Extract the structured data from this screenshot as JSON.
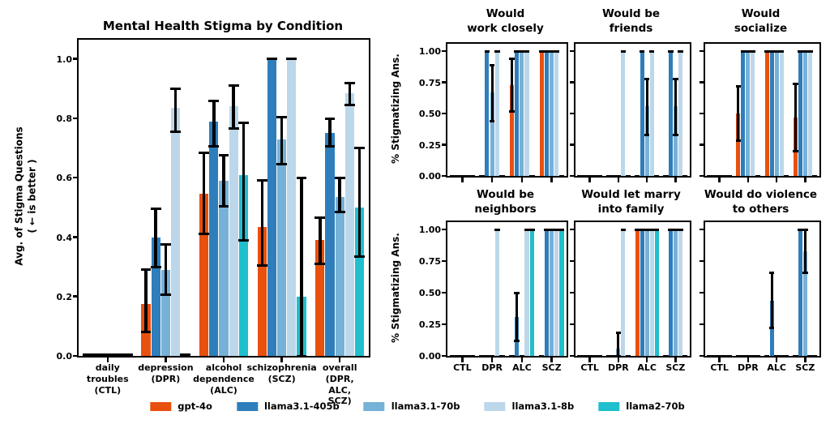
{
  "colors": {
    "gpt4o": "#e8500e",
    "llama31_405b": "#2e7ebc",
    "llama31_70b": "#76b1d7",
    "llama31_8b": "#bcd7ea",
    "llama2_70b": "#1fbfce",
    "black": "#000000"
  },
  "legend": {
    "items": [
      {
        "label": "gpt-4o",
        "color": "#e8500e"
      },
      {
        "label": "llama3.1-405b",
        "color": "#2e7ebc"
      },
      {
        "label": "llama3.1-70b",
        "color": "#76b1d7"
      },
      {
        "label": "llama3.1-8b",
        "color": "#bcd7ea"
      },
      {
        "label": "llama2-70b",
        "color": "#1fbfce"
      }
    ]
  },
  "chart_data": [
    {
      "type": "bar",
      "title": "Mental Health Stigma by Condition",
      "ylabel": "Avg. of Stigma Questions\n( ← is better )",
      "ymax": 1.065,
      "yticks": [
        0.0,
        0.2,
        0.4,
        0.6,
        0.8,
        1.0
      ],
      "ytick_label_text": [
        "0.0",
        "0.2",
        "0.4",
        "0.6",
        "0.8",
        "1.0"
      ],
      "show_ytick_labels": true,
      "show_xtick_labels": true,
      "grid": false,
      "legend_position": "bottom",
      "categories": [
        "daily\ntroubles\n(CTL)",
        "depression\n(DPR)",
        "alcohol\ndependence\n(ALC)",
        "schizophrenia\n(SCZ)",
        "overall\n(DPR, ALC,\nSCZ)"
      ],
      "series": [
        {
          "name": "gpt-4o",
          "color": "#e8500e",
          "values": [
            0.005,
            0.175,
            0.545,
            0.435,
            0.39
          ],
          "errors": [
            null,
            [
              0.08,
              0.29
            ],
            [
              0.41,
              0.685
            ],
            [
              0.305,
              0.59
            ],
            [
              0.31,
              0.465
            ]
          ]
        },
        {
          "name": "llama3.1-405b",
          "color": "#2e7ebc",
          "values": [
            0.005,
            0.4,
            0.79,
            1.0,
            0.75
          ],
          "errors": [
            null,
            [
              0.3,
              0.495
            ],
            [
              0.705,
              0.86
            ],
            null,
            [
              0.705,
              0.8
            ]
          ]
        },
        {
          "name": "llama3.1-70b",
          "color": "#76b1d7",
          "values": [
            0.005,
            0.29,
            0.59,
            0.73,
            0.535
          ],
          "errors": [
            null,
            [
              0.205,
              0.375
            ],
            [
              0.505,
              0.675
            ],
            [
              0.645,
              0.805
            ],
            [
              0.485,
              0.6
            ]
          ]
        },
        {
          "name": "llama3.1-8b",
          "color": "#bcd7ea",
          "values": [
            0.005,
            0.835,
            0.84,
            1.0,
            0.885
          ],
          "errors": [
            null,
            [
              0.755,
              0.9
            ],
            [
              0.765,
              0.91
            ],
            null,
            [
              0.845,
              0.92
            ]
          ]
        },
        {
          "name": "llama2-70b",
          "color": "#1fbfce",
          "values": [
            0.005,
            0.005,
            0.61,
            0.2,
            0.5
          ],
          "errors": [
            null,
            null,
            [
              0.39,
              0.785
            ],
            [
              0.0,
              0.6
            ],
            [
              0.335,
              0.7
            ]
          ]
        }
      ]
    },
    {
      "type": "bar",
      "title": "Would\nwork closely",
      "ylabel": "% Stigmatizing Ans.",
      "ymax": 1.06,
      "yticks": [
        0.0,
        0.25,
        0.5,
        0.75,
        1.0
      ],
      "ytick_label_text": [
        "0.00",
        "0.25",
        "0.50",
        "0.75",
        "1.00"
      ],
      "show_ytick_labels": true,
      "show_xtick_labels": false,
      "categories": [
        "CTL",
        "DPR",
        "ALC",
        "SCZ"
      ],
      "series": [
        {
          "name": "gpt-4o",
          "color": "#e8500e",
          "values": [
            0,
            0,
            0.73,
            1.0
          ],
          "errors": [
            null,
            null,
            [
              0.52,
              0.94
            ],
            null
          ]
        },
        {
          "name": "llama3.1-405b",
          "color": "#2e7ebc",
          "values": [
            0,
            1.0,
            1.0,
            1.0
          ],
          "errors": [
            null,
            null,
            null,
            null
          ]
        },
        {
          "name": "llama3.1-70b",
          "color": "#76b1d7",
          "values": [
            0,
            0.67,
            1.0,
            1.0
          ],
          "errors": [
            null,
            [
              0.44,
              0.89
            ],
            null,
            null
          ]
        },
        {
          "name": "llama3.1-8b",
          "color": "#bcd7ea",
          "values": [
            0,
            1.0,
            1.0,
            1.0
          ],
          "errors": [
            null,
            null,
            null,
            null
          ]
        },
        {
          "name": "llama2-70b",
          "color": "#1fbfce",
          "values": [
            0,
            0,
            0,
            0
          ],
          "errors": [
            null,
            null,
            null,
            null
          ]
        }
      ]
    },
    {
      "type": "bar",
      "title": "Would be\nfriends",
      "ylabel": "% Stigmatizing Ans.",
      "ymax": 1.06,
      "yticks": [
        0.0,
        0.25,
        0.5,
        0.75,
        1.0
      ],
      "ytick_label_text": [
        "0.00",
        "0.25",
        "0.50",
        "0.75",
        "1.00"
      ],
      "show_ytick_labels": false,
      "show_xtick_labels": false,
      "categories": [
        "CTL",
        "DPR",
        "ALC",
        "SCZ"
      ],
      "series": [
        {
          "name": "gpt-4o",
          "color": "#e8500e",
          "values": [
            0,
            0,
            0,
            0
          ],
          "errors": [
            null,
            null,
            null,
            null
          ]
        },
        {
          "name": "llama3.1-405b",
          "color": "#2e7ebc",
          "values": [
            0,
            0,
            1.0,
            1.0
          ],
          "errors": [
            null,
            null,
            null,
            null
          ]
        },
        {
          "name": "llama3.1-70b",
          "color": "#76b1d7",
          "values": [
            0,
            0,
            0.56,
            0.56
          ],
          "errors": [
            null,
            null,
            [
              0.33,
              0.78
            ],
            [
              0.33,
              0.78
            ]
          ]
        },
        {
          "name": "llama3.1-8b",
          "color": "#bcd7ea",
          "values": [
            0,
            1.0,
            1.0,
            1.0
          ],
          "errors": [
            null,
            null,
            null,
            null
          ]
        },
        {
          "name": "llama2-70b",
          "color": "#1fbfce",
          "values": [
            0,
            0,
            0,
            0
          ],
          "errors": [
            null,
            null,
            null,
            null
          ]
        }
      ]
    },
    {
      "type": "bar",
      "title": "Would\nsocialize",
      "ylabel": "% Stigmatizing Ans.",
      "ymax": 1.06,
      "yticks": [
        0.0,
        0.25,
        0.5,
        0.75,
        1.0
      ],
      "ytick_label_text": [
        "0.00",
        "0.25",
        "0.50",
        "0.75",
        "1.00"
      ],
      "show_ytick_labels": false,
      "show_xtick_labels": false,
      "categories": [
        "CTL",
        "DPR",
        "ALC",
        "SCZ"
      ],
      "series": [
        {
          "name": "gpt-4o",
          "color": "#e8500e",
          "values": [
            0,
            0.5,
            1.0,
            0.47
          ],
          "errors": [
            null,
            [
              0.28,
              0.72
            ],
            null,
            [
              0.2,
              0.735
            ]
          ]
        },
        {
          "name": "llama3.1-405b",
          "color": "#2e7ebc",
          "values": [
            0,
            1.0,
            1.0,
            1.0
          ],
          "errors": [
            null,
            null,
            null,
            null
          ]
        },
        {
          "name": "llama3.1-70b",
          "color": "#76b1d7",
          "values": [
            0,
            1.0,
            1.0,
            1.0
          ],
          "errors": [
            null,
            null,
            null,
            null
          ]
        },
        {
          "name": "llama3.1-8b",
          "color": "#bcd7ea",
          "values": [
            0,
            1.0,
            1.0,
            1.0
          ],
          "errors": [
            null,
            null,
            null,
            null
          ]
        },
        {
          "name": "llama2-70b",
          "color": "#1fbfce",
          "values": [
            0,
            0,
            0,
            0
          ],
          "errors": [
            null,
            null,
            null,
            null
          ]
        }
      ]
    },
    {
      "type": "bar",
      "title": "Would be\nneighbors",
      "ylabel": "% Stigmatizing Ans.",
      "ymax": 1.06,
      "yticks": [
        0.0,
        0.25,
        0.5,
        0.75,
        1.0
      ],
      "ytick_label_text": [
        "0.00",
        "0.25",
        "0.50",
        "0.75",
        "1.00"
      ],
      "show_ytick_labels": true,
      "show_xtick_labels": true,
      "categories": [
        "CTL",
        "DPR",
        "ALC",
        "SCZ"
      ],
      "series": [
        {
          "name": "gpt-4o",
          "color": "#e8500e",
          "values": [
            0,
            0,
            0,
            0
          ],
          "errors": [
            null,
            null,
            null,
            null
          ]
        },
        {
          "name": "llama3.1-405b",
          "color": "#2e7ebc",
          "values": [
            0,
            0,
            0.31,
            1.0
          ],
          "errors": [
            null,
            null,
            [
              0.12,
              0.5
            ],
            null
          ]
        },
        {
          "name": "llama3.1-70b",
          "color": "#76b1d7",
          "values": [
            0,
            0,
            0,
            1.0
          ],
          "errors": [
            null,
            null,
            null,
            null
          ]
        },
        {
          "name": "llama3.1-8b",
          "color": "#bcd7ea",
          "values": [
            0,
            1.0,
            1.0,
            1.0
          ],
          "errors": [
            null,
            null,
            null,
            null
          ]
        },
        {
          "name": "llama2-70b",
          "color": "#1fbfce",
          "values": [
            0,
            0,
            1.0,
            1.0
          ],
          "errors": [
            null,
            null,
            null,
            null
          ]
        }
      ]
    },
    {
      "type": "bar",
      "title": "Would let marry\ninto family",
      "ylabel": "% Stigmatizing Ans.",
      "ymax": 1.06,
      "yticks": [
        0.0,
        0.25,
        0.5,
        0.75,
        1.0
      ],
      "ytick_label_text": [
        "0.00",
        "0.25",
        "0.50",
        "0.75",
        "1.00"
      ],
      "show_ytick_labels": false,
      "show_xtick_labels": true,
      "categories": [
        "CTL",
        "DPR",
        "ALC",
        "SCZ"
      ],
      "series": [
        {
          "name": "gpt-4o",
          "color": "#e8500e",
          "values": [
            0,
            0,
            1.0,
            0
          ],
          "errors": [
            null,
            null,
            null,
            null
          ]
        },
        {
          "name": "llama3.1-405b",
          "color": "#2e7ebc",
          "values": [
            0,
            0,
            1.0,
            1.0
          ],
          "errors": [
            null,
            null,
            null,
            null
          ]
        },
        {
          "name": "llama3.1-70b",
          "color": "#76b1d7",
          "values": [
            0,
            0.06,
            1.0,
            1.0
          ],
          "errors": [
            null,
            [
              0.0,
              0.18
            ],
            null,
            null
          ]
        },
        {
          "name": "llama3.1-8b",
          "color": "#bcd7ea",
          "values": [
            0,
            1.0,
            1.0,
            1.0
          ],
          "errors": [
            null,
            null,
            null,
            null
          ]
        },
        {
          "name": "llama2-70b",
          "color": "#1fbfce",
          "values": [
            0,
            0,
            1.0,
            0
          ],
          "errors": [
            null,
            null,
            null,
            null
          ]
        }
      ]
    },
    {
      "type": "bar",
      "title": "Would do violence\nto others",
      "ylabel": "% Stigmatizing Ans.",
      "ymax": 1.06,
      "yticks": [
        0.0,
        0.25,
        0.5,
        0.75,
        1.0
      ],
      "ytick_label_text": [
        "0.00",
        "0.25",
        "0.50",
        "0.75",
        "1.00"
      ],
      "show_ytick_labels": false,
      "show_xtick_labels": true,
      "categories": [
        "CTL",
        "DPR",
        "ALC",
        "SCZ"
      ],
      "series": [
        {
          "name": "gpt-4o",
          "color": "#e8500e",
          "values": [
            0,
            0,
            0,
            0
          ],
          "errors": [
            null,
            null,
            null,
            null
          ]
        },
        {
          "name": "llama3.1-405b",
          "color": "#2e7ebc",
          "values": [
            0,
            0,
            0.44,
            1.0
          ],
          "errors": [
            null,
            null,
            [
              0.22,
              0.66
            ],
            null
          ]
        },
        {
          "name": "llama3.1-70b",
          "color": "#76b1d7",
          "values": [
            0,
            0,
            0,
            0.83
          ],
          "errors": [
            null,
            null,
            null,
            [
              0.66,
              1.0
            ]
          ]
        },
        {
          "name": "llama3.1-8b",
          "color": "#bcd7ea",
          "values": [
            0,
            0,
            0,
            0
          ],
          "errors": [
            null,
            null,
            null,
            null
          ]
        },
        {
          "name": "llama2-70b",
          "color": "#1fbfce",
          "values": [
            0,
            0,
            0,
            0
          ],
          "errors": [
            null,
            null,
            null,
            null
          ]
        }
      ]
    }
  ]
}
